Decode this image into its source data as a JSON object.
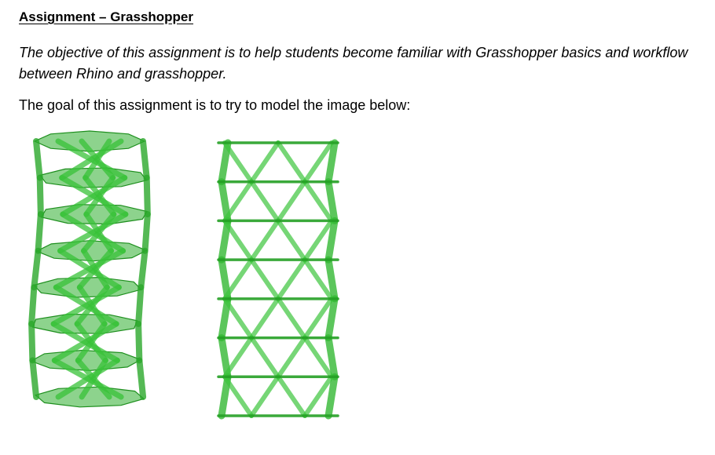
{
  "document": {
    "title": "Assignment – Grasshopper",
    "objective": "The objective of this assignment is to help students become familiar with Grasshopper basics and workflow between Rhino and grasshopper.",
    "goal": "The goal of this assignment is to try to model the image below:"
  },
  "figures": [
    {
      "view": "perspective",
      "icon": "twisted-tower-render",
      "color": "#2db52d"
    },
    {
      "view": "elevation",
      "icon": "diagrid-tower-elevation",
      "color": "#2db52d"
    }
  ]
}
